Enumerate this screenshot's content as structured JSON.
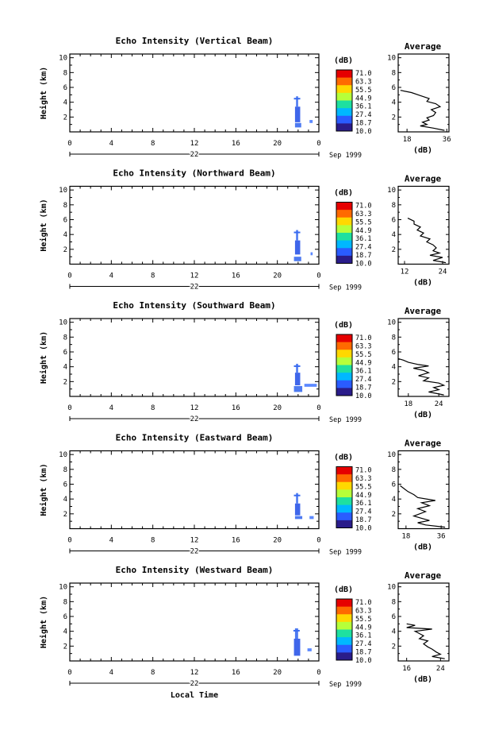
{
  "figure": {
    "footer_label": "Local Time"
  },
  "chart_data": [
    {
      "type": "heatmap",
      "title": "Echo Intensity (Vertical Beam)",
      "ylabel": "Height (km)",
      "xlim": [
        0,
        24
      ],
      "ylim": [
        0,
        10.5
      ],
      "xticks": [
        "0",
        "4",
        "8",
        "12",
        "16",
        "20",
        "0"
      ],
      "yticks": [
        "2",
        "4",
        "6",
        "8",
        "10"
      ],
      "day_label": "22",
      "month_label": "Sep 1999",
      "colorbar": {
        "unit": "(dB)",
        "levels": [
          "71.0",
          "63.3",
          "55.5",
          "44.9",
          "36.1",
          "27.4",
          "18.7",
          "10.0"
        ],
        "colors": [
          "#e60000",
          "#ff6a00",
          "#ffd800",
          "#b6ff3a",
          "#1ee0a0",
          "#00b8ff",
          "#2a5cff",
          "#2a1c8a"
        ]
      },
      "echo_patches": [
        {
          "t": [
            21.8,
            22.0
          ],
          "h": [
            3.4,
            4.8
          ],
          "color": "#3a6cf0"
        },
        {
          "t": [
            21.7,
            22.2
          ],
          "h": [
            1.3,
            3.4
          ],
          "color": "#2a55e8"
        },
        {
          "t": [
            21.7,
            22.3
          ],
          "h": [
            0.6,
            1.2
          ],
          "color": "#3a6cf0"
        },
        {
          "t": [
            23.1,
            23.4
          ],
          "h": [
            1.2,
            1.6
          ],
          "color": "#4a7cff"
        }
      ],
      "profile": {
        "title": "Average",
        "xlabel": "(dB)",
        "xticks": [
          "18",
          "36"
        ],
        "xlim": [
          14,
          37
        ],
        "yticks": [
          "2",
          "4",
          "6",
          "8",
          "10"
        ],
        "ylim": [
          0,
          10.5
        ]
      },
      "avg_profile": {
        "dB": [
          35,
          30,
          24,
          27,
          25,
          28,
          27,
          30,
          31,
          29,
          33,
          31,
          27,
          28,
          24,
          20,
          15
        ],
        "height_km": [
          0.2,
          0.5,
          0.8,
          1.0,
          1.3,
          1.6,
          1.9,
          2.2,
          2.6,
          3.0,
          3.4,
          3.8,
          4.1,
          4.5,
          4.9,
          5.3,
          5.6
        ]
      }
    },
    {
      "type": "heatmap",
      "title": "Echo Intensity (Northward Beam)",
      "ylabel": "Height (km)",
      "xlim": [
        0,
        24
      ],
      "ylim": [
        0,
        10.5
      ],
      "xticks": [
        "0",
        "4",
        "8",
        "12",
        "16",
        "20",
        "0"
      ],
      "yticks": [
        "2",
        "4",
        "6",
        "8",
        "10"
      ],
      "day_label": "22",
      "month_label": "Sep 1999",
      "colorbar": {
        "unit": "(dB)",
        "levels": [
          "71.0",
          "63.3",
          "55.5",
          "44.9",
          "36.1",
          "27.4",
          "18.7",
          "10.0"
        ],
        "colors": [
          "#e60000",
          "#ff6a00",
          "#ffd800",
          "#b6ff3a",
          "#1ee0a0",
          "#00b8ff",
          "#2a5cff",
          "#2a1c8a"
        ]
      },
      "echo_patches": [
        {
          "t": [
            21.8,
            22.0
          ],
          "h": [
            3.2,
            4.6
          ],
          "color": "#3a6cf0"
        },
        {
          "t": [
            21.7,
            22.2
          ],
          "h": [
            1.3,
            3.2
          ],
          "color": "#2a55e8"
        },
        {
          "t": [
            21.6,
            22.3
          ],
          "h": [
            0.4,
            1.0
          ],
          "color": "#3a6cf0"
        },
        {
          "t": [
            23.2,
            23.4
          ],
          "h": [
            1.2,
            1.6
          ],
          "color": "#4a7cff"
        }
      ],
      "profile": {
        "title": "Average",
        "xlabel": "(dB)",
        "xticks": [
          "12",
          "24"
        ],
        "xlim": [
          10,
          26
        ],
        "yticks": [
          "2",
          "4",
          "6",
          "8",
          "10"
        ],
        "ylim": [
          0,
          10.5
        ]
      },
      "avg_profile": {
        "dB": [
          25,
          21,
          24,
          20,
          23,
          21,
          22,
          21,
          19,
          20,
          17,
          18,
          16,
          17,
          15,
          15,
          13
        ],
        "height_km": [
          0.2,
          0.5,
          0.9,
          1.2,
          1.5,
          1.8,
          2.2,
          2.6,
          3.0,
          3.4,
          3.8,
          4.2,
          4.6,
          5.0,
          5.4,
          5.8,
          6.2
        ]
      }
    },
    {
      "type": "heatmap",
      "title": "Echo Intensity (Southward Beam)",
      "ylabel": "Height (km)",
      "xlim": [
        0,
        24
      ],
      "ylim": [
        0,
        10.5
      ],
      "xticks": [
        "0",
        "4",
        "8",
        "12",
        "16",
        "20",
        "0"
      ],
      "yticks": [
        "2",
        "4",
        "6",
        "8",
        "10"
      ],
      "day_label": "22",
      "month_label": "Sep 1999",
      "colorbar": {
        "unit": "(dB)",
        "levels": [
          "71.0",
          "63.3",
          "55.5",
          "44.9",
          "36.1",
          "27.4",
          "18.7",
          "10.0"
        ],
        "colors": [
          "#e60000",
          "#ff6a00",
          "#ffd800",
          "#b6ff3a",
          "#1ee0a0",
          "#00b8ff",
          "#2a5cff",
          "#2a1c8a"
        ]
      },
      "echo_patches": [
        {
          "t": [
            21.8,
            22.0
          ],
          "h": [
            3.2,
            4.4
          ],
          "color": "#3a6cf0"
        },
        {
          "t": [
            21.7,
            22.2
          ],
          "h": [
            1.5,
            3.2
          ],
          "color": "#2a55e8"
        },
        {
          "t": [
            21.6,
            22.4
          ],
          "h": [
            0.6,
            1.4
          ],
          "color": "#3a6cf0"
        },
        {
          "t": [
            22.6,
            23.8
          ],
          "h": [
            1.3,
            1.7
          ],
          "color": "#4a7cff"
        }
      ],
      "profile": {
        "title": "Average",
        "xlabel": "(dB)",
        "xticks": [
          "18",
          "24"
        ],
        "xlim": [
          16,
          26
        ],
        "yticks": [
          "2",
          "4",
          "6",
          "8",
          "10"
        ],
        "ylim": [
          0,
          10.5
        ]
      },
      "avg_profile": {
        "dB": [
          25,
          22,
          24,
          23,
          25,
          24,
          21,
          22,
          20,
          22,
          21,
          19,
          22,
          20,
          18,
          17,
          16
        ],
        "height_km": [
          0.2,
          0.6,
          0.9,
          1.2,
          1.5,
          1.8,
          2.1,
          2.5,
          2.8,
          3.2,
          3.5,
          3.8,
          4.1,
          4.3,
          4.6,
          4.9,
          5.1
        ]
      }
    },
    {
      "type": "heatmap",
      "title": "Echo Intensity (Eastward Beam)",
      "ylabel": "Height (km)",
      "xlim": [
        0,
        24
      ],
      "ylim": [
        0,
        10.5
      ],
      "xticks": [
        "0",
        "4",
        "8",
        "12",
        "16",
        "20",
        "0"
      ],
      "yticks": [
        "2",
        "4",
        "6",
        "8",
        "10"
      ],
      "day_label": "22",
      "month_label": "Sep 1999",
      "colorbar": {
        "unit": "(dB)",
        "levels": [
          "71.0",
          "63.3",
          "55.5",
          "44.9",
          "36.1",
          "27.4",
          "18.7",
          "10.0"
        ],
        "colors": [
          "#e60000",
          "#ff6a00",
          "#ffd800",
          "#b6ff3a",
          "#1ee0a0",
          "#00b8ff",
          "#2a5cff",
          "#2a1c8a"
        ]
      },
      "echo_patches": [
        {
          "t": [
            21.8,
            22.0
          ],
          "h": [
            3.4,
            4.8
          ],
          "color": "#3a6cf0"
        },
        {
          "t": [
            21.7,
            22.2
          ],
          "h": [
            1.8,
            3.4
          ],
          "color": "#2a55e8"
        },
        {
          "t": [
            21.7,
            22.4
          ],
          "h": [
            1.3,
            1.7
          ],
          "color": "#3a6cf0"
        },
        {
          "t": [
            23.1,
            23.5
          ],
          "h": [
            1.3,
            1.7
          ],
          "color": "#4a7cff"
        }
      ],
      "profile": {
        "title": "Average",
        "xlabel": "(dB)",
        "xticks": [
          "18",
          "36"
        ],
        "xlim": [
          14,
          40
        ],
        "yticks": [
          "2",
          "4",
          "6",
          "8",
          "10"
        ],
        "ylim": [
          0,
          10.5
        ]
      },
      "avg_profile": {
        "dB": [
          38,
          28,
          24,
          30,
          26,
          22,
          25,
          28,
          24,
          30,
          26,
          33,
          24,
          22,
          19,
          17,
          15
        ],
        "height_km": [
          0.2,
          0.5,
          0.8,
          1.1,
          1.4,
          1.7,
          2.0,
          2.3,
          2.7,
          3.1,
          3.5,
          3.8,
          4.2,
          4.6,
          5.0,
          5.4,
          5.8
        ]
      }
    },
    {
      "type": "heatmap",
      "title": "Echo Intensity (Westward Beam)",
      "ylabel": "Height (km)",
      "xlim": [
        0,
        24
      ],
      "ylim": [
        0,
        10.5
      ],
      "xticks": [
        "0",
        "4",
        "8",
        "12",
        "16",
        "20",
        "0"
      ],
      "yticks": [
        "2",
        "4",
        "6",
        "8",
        "10"
      ],
      "day_label": "22",
      "month_label": "Sep 1999",
      "colorbar": {
        "unit": "(dB)",
        "levels": [
          "71.0",
          "63.3",
          "55.5",
          "44.9",
          "36.1",
          "27.4",
          "18.7",
          "10.0"
        ],
        "colors": [
          "#e60000",
          "#ff6a00",
          "#ffd800",
          "#b6ff3a",
          "#1ee0a0",
          "#00b8ff",
          "#2a5cff",
          "#2a1c8a"
        ]
      },
      "echo_patches": [
        {
          "t": [
            21.7,
            22.0
          ],
          "h": [
            3.0,
            4.4
          ],
          "color": "#3a6cf0"
        },
        {
          "t": [
            21.6,
            22.2
          ],
          "h": [
            0.7,
            3.0
          ],
          "color": "#2a55e8"
        },
        {
          "t": [
            22.9,
            23.3
          ],
          "h": [
            1.3,
            1.7
          ],
          "color": "#4a7cff"
        }
      ],
      "profile": {
        "title": "Average",
        "xlabel": "(dB)",
        "xticks": [
          "16",
          "24"
        ],
        "xlim": [
          14,
          26
        ],
        "yticks": [
          "2",
          "4",
          "6",
          "8",
          "10"
        ],
        "ylim": [
          0,
          10.5
        ]
      },
      "avg_profile": {
        "dB": [
          25,
          22,
          24,
          23,
          22,
          21,
          20,
          21,
          19,
          20,
          19,
          18,
          22,
          16,
          18,
          16
        ],
        "height_km": [
          0.3,
          0.6,
          0.9,
          1.2,
          1.6,
          1.9,
          2.3,
          2.7,
          3.0,
          3.4,
          3.7,
          4.0,
          4.3,
          4.5,
          4.8,
          5.0
        ]
      }
    }
  ]
}
